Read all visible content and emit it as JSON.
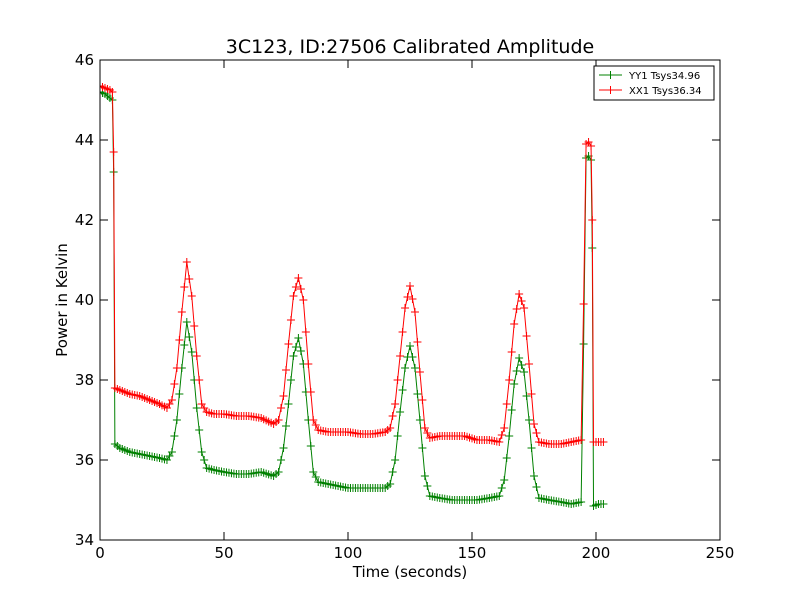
{
  "chart_data": {
    "type": "line",
    "title": "3C123, ID:27506 Calibrated Amplitude",
    "xlabel": "Time (seconds)",
    "ylabel": "Power in Kelvin",
    "xlim": [
      0,
      250
    ],
    "ylim": [
      34,
      46
    ],
    "xticks": [
      "0",
      "50",
      "100",
      "150",
      "200",
      "250"
    ],
    "yticks": [
      "34",
      "36",
      "38",
      "40",
      "42",
      "44",
      "46"
    ],
    "grid": false,
    "legend_position": "top-right",
    "marker": "plus",
    "series": [
      {
        "name": "YY1 Tsys34.96",
        "color": "#008000",
        "points": [
          [
            0,
            45.2
          ],
          [
            2,
            45.15
          ],
          [
            4,
            45.05
          ],
          [
            5,
            45.0
          ],
          [
            5.5,
            43.2
          ],
          [
            6,
            36.4
          ],
          [
            8,
            36.3
          ],
          [
            12,
            36.2
          ],
          [
            16,
            36.15
          ],
          [
            20,
            36.1
          ],
          [
            24,
            36.05
          ],
          [
            27,
            36.0
          ],
          [
            29,
            36.2
          ],
          [
            31,
            37.0
          ],
          [
            33,
            38.3
          ],
          [
            35,
            39.45
          ],
          [
            37,
            38.7
          ],
          [
            39,
            37.3
          ],
          [
            41,
            36.2
          ],
          [
            43,
            35.8
          ],
          [
            46,
            35.75
          ],
          [
            50,
            35.7
          ],
          [
            55,
            35.65
          ],
          [
            60,
            35.65
          ],
          [
            65,
            35.7
          ],
          [
            70,
            35.6
          ],
          [
            72,
            35.7
          ],
          [
            74,
            36.3
          ],
          [
            76,
            37.4
          ],
          [
            78,
            38.6
          ],
          [
            80,
            39.05
          ],
          [
            82,
            38.4
          ],
          [
            84,
            37.0
          ],
          [
            86,
            35.7
          ],
          [
            88,
            35.45
          ],
          [
            92,
            35.4
          ],
          [
            96,
            35.35
          ],
          [
            100,
            35.3
          ],
          [
            105,
            35.3
          ],
          [
            110,
            35.3
          ],
          [
            115,
            35.3
          ],
          [
            117,
            35.4
          ],
          [
            119,
            36.0
          ],
          [
            121,
            37.2
          ],
          [
            123,
            38.3
          ],
          [
            125,
            38.85
          ],
          [
            127,
            38.3
          ],
          [
            129,
            37.0
          ],
          [
            131,
            35.6
          ],
          [
            133,
            35.1
          ],
          [
            137,
            35.05
          ],
          [
            142,
            35.0
          ],
          [
            147,
            35.0
          ],
          [
            152,
            35.0
          ],
          [
            157,
            35.05
          ],
          [
            161,
            35.1
          ],
          [
            163,
            35.5
          ],
          [
            165,
            36.6
          ],
          [
            167,
            37.9
          ],
          [
            169,
            38.55
          ],
          [
            171,
            38.2
          ],
          [
            173,
            37.0
          ],
          [
            175,
            35.6
          ],
          [
            177,
            35.05
          ],
          [
            181,
            35.0
          ],
          [
            186,
            34.95
          ],
          [
            190,
            34.9
          ],
          [
            194,
            34.95
          ],
          [
            195,
            38.9
          ],
          [
            196,
            43.55
          ],
          [
            197,
            43.6
          ],
          [
            198,
            43.5
          ],
          [
            198.5,
            41.3
          ],
          [
            199,
            34.85
          ],
          [
            201,
            34.9
          ],
          [
            203,
            34.9
          ]
        ]
      },
      {
        "name": "XX1 Tsys36.34",
        "color": "#ff0000",
        "points": [
          [
            0,
            45.35
          ],
          [
            2,
            45.3
          ],
          [
            4,
            45.25
          ],
          [
            5,
            45.2
          ],
          [
            5.5,
            43.7
          ],
          [
            6,
            37.8
          ],
          [
            8,
            37.75
          ],
          [
            12,
            37.65
          ],
          [
            16,
            37.6
          ],
          [
            20,
            37.5
          ],
          [
            24,
            37.4
          ],
          [
            27,
            37.3
          ],
          [
            29,
            37.5
          ],
          [
            31,
            38.3
          ],
          [
            33,
            39.7
          ],
          [
            35,
            40.95
          ],
          [
            37,
            40.1
          ],
          [
            39,
            38.6
          ],
          [
            41,
            37.4
          ],
          [
            43,
            37.2
          ],
          [
            46,
            37.15
          ],
          [
            50,
            37.15
          ],
          [
            55,
            37.1
          ],
          [
            60,
            37.1
          ],
          [
            65,
            37.05
          ],
          [
            70,
            36.9
          ],
          [
            72,
            37.0
          ],
          [
            74,
            37.6
          ],
          [
            76,
            38.9
          ],
          [
            78,
            40.1
          ],
          [
            80,
            40.55
          ],
          [
            82,
            40.0
          ],
          [
            84,
            38.4
          ],
          [
            86,
            37.0
          ],
          [
            88,
            36.75
          ],
          [
            92,
            36.7
          ],
          [
            96,
            36.7
          ],
          [
            100,
            36.7
          ],
          [
            105,
            36.65
          ],
          [
            110,
            36.65
          ],
          [
            115,
            36.7
          ],
          [
            117,
            36.8
          ],
          [
            119,
            37.4
          ],
          [
            121,
            38.6
          ],
          [
            123,
            39.8
          ],
          [
            125,
            40.35
          ],
          [
            127,
            39.7
          ],
          [
            129,
            38.2
          ],
          [
            131,
            36.8
          ],
          [
            133,
            36.55
          ],
          [
            137,
            36.6
          ],
          [
            142,
            36.6
          ],
          [
            147,
            36.6
          ],
          [
            152,
            36.5
          ],
          [
            157,
            36.5
          ],
          [
            161,
            36.45
          ],
          [
            163,
            36.8
          ],
          [
            165,
            38.0
          ],
          [
            167,
            39.4
          ],
          [
            169,
            40.15
          ],
          [
            171,
            39.8
          ],
          [
            173,
            38.4
          ],
          [
            175,
            36.9
          ],
          [
            177,
            36.45
          ],
          [
            181,
            36.4
          ],
          [
            186,
            36.4
          ],
          [
            190,
            36.45
          ],
          [
            194,
            36.5
          ],
          [
            195,
            39.9
          ],
          [
            196,
            43.9
          ],
          [
            197,
            43.95
          ],
          [
            198,
            43.85
          ],
          [
            198.5,
            42.0
          ],
          [
            199,
            36.45
          ],
          [
            201,
            36.45
          ],
          [
            203,
            36.45
          ]
        ]
      }
    ]
  }
}
